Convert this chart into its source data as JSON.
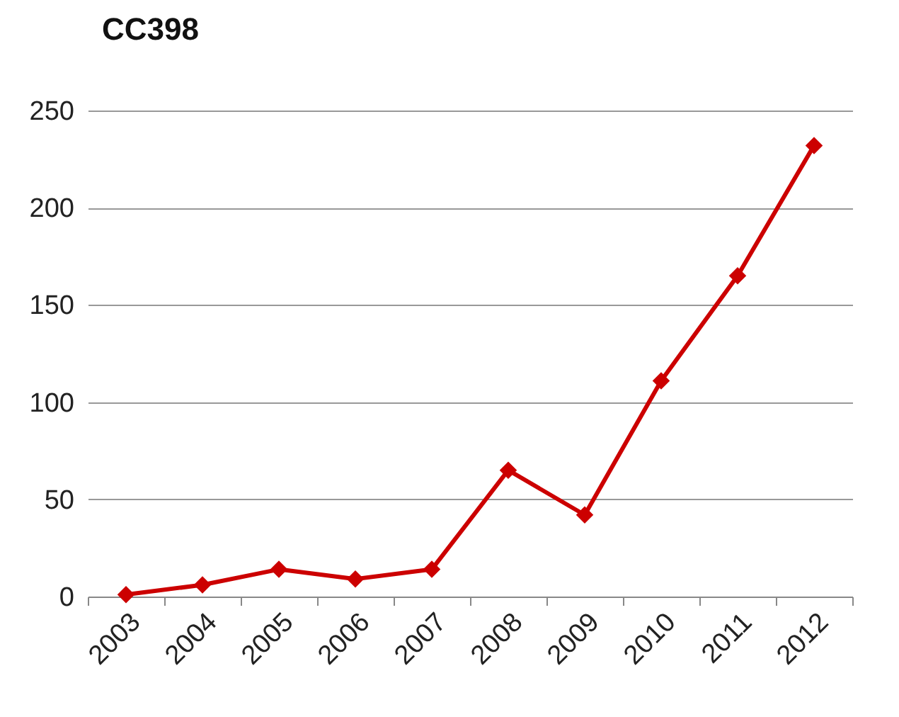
{
  "chart_data": {
    "type": "line",
    "title": "CC398",
    "categories": [
      "2003",
      "2004",
      "2005",
      "2006",
      "2007",
      "2008",
      "2009",
      "2010",
      "2011",
      "2012"
    ],
    "series": [
      {
        "color": "#cc0000",
        "values": [
          1,
          6,
          14,
          9,
          14,
          65,
          42,
          111,
          165,
          232
        ]
      }
    ],
    "ylim": [
      0,
      250
    ],
    "yticks": [
      0,
      50,
      100,
      150,
      200,
      250
    ],
    "grid": "y",
    "marker": "diamond",
    "line_style": "solid"
  }
}
